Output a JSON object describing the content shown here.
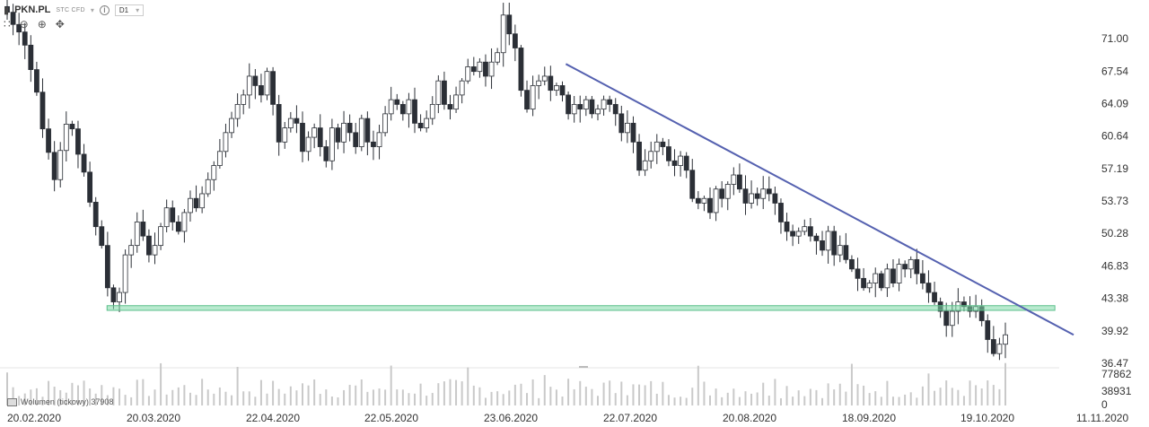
{
  "toolbar": {
    "symbol": "PKN.PL",
    "instrument_type": "STC CFD",
    "timeframe": "D1",
    "icons": [
      "chevron-down-icon",
      "info-icon",
      "candles-icon",
      "zoom-out-icon",
      "zoom-in-icon",
      "move-icon"
    ]
  },
  "volume_label": "Wolumen (tickowy) 37908",
  "colors": {
    "bull": "#ffffff",
    "bear": "#2b2f36",
    "trendline": "#5561b0",
    "support": "#7fd9a8",
    "volume": "#c9c9c9"
  },
  "chart_data": {
    "type": "candlestick",
    "y_ticks": [
      "71.00",
      "67.54",
      "64.09",
      "60.64",
      "57.19",
      "53.73",
      "50.28",
      "46.83",
      "43.38",
      "39.92",
      "36.47"
    ],
    "x_ticks": [
      "20.02.2020",
      "20.03.2020",
      "22.04.2020",
      "22.05.2020",
      "23.06.2020",
      "22.07.2020",
      "20.08.2020",
      "18.09.2020",
      "19.10.2020",
      "11.11.2020"
    ],
    "volume_ticks": [
      "77862",
      "38931",
      "0"
    ],
    "ylim": [
      36.47,
      71.0
    ],
    "trendline": {
      "start": [
        "2020-06-18",
        68.3
      ],
      "end": [
        "2020-11-11",
        39.5
      ]
    },
    "support_zone": {
      "from": 42.1,
      "to": 42.6,
      "start": "2020-03-18",
      "end": "2020-10-28"
    },
    "closes": [
      73.8,
      72.5,
      71.7,
      70.3,
      67.7,
      65.3,
      61.4,
      58.9,
      56.0,
      59.1,
      61.9,
      61.4,
      58.7,
      56.8,
      53.6,
      51.0,
      49.0,
      44.5,
      43.0,
      44.0,
      48.0,
      49.0,
      51.5,
      50.0,
      48.0,
      49.0,
      51.0,
      53.0,
      51.5,
      50.5,
      52.5,
      54.0,
      53.0,
      54.5,
      56.0,
      57.5,
      59.0,
      61.0,
      62.5,
      64.0,
      65.0,
      67.0,
      66.0,
      65.0,
      67.5,
      64.0,
      60.0,
      61.5,
      62.5,
      62.0,
      59.0,
      60.5,
      61.5,
      59.5,
      58.0,
      61.5,
      60.0,
      62.0,
      61.0,
      59.5,
      62.5,
      60.0,
      59.5,
      61.0,
      63.0,
      64.5,
      64.0,
      63.0,
      64.5,
      62.0,
      61.5,
      62.5,
      64.0,
      66.5,
      64.0,
      63.5,
      65.0,
      66.5,
      68.0,
      67.5,
      68.5,
      67.0,
      68.5,
      69.5,
      73.5,
      71.5,
      70.0,
      65.5,
      63.5,
      66.0,
      66.5,
      67.0,
      65.5,
      66.0,
      65.0,
      63.0,
      64.0,
      63.5,
      64.5,
      63.0,
      63.5,
      64.5,
      64.0,
      63.0,
      61.0,
      62.0,
      60.0,
      57.0,
      58.0,
      59.0,
      60.0,
      59.5,
      58.0,
      57.5,
      58.5,
      57.0,
      54.0,
      53.5,
      54.0,
      52.5,
      55.0,
      54.0,
      55.5,
      56.5,
      55.0,
      53.5,
      54.5,
      54.0,
      55.0,
      54.5,
      53.5,
      51.5,
      50.5,
      50.0,
      50.5,
      51.0,
      50.0,
      49.5,
      48.5,
      50.5,
      48.0,
      49.0,
      47.5,
      46.5,
      45.5,
      44.5,
      45.0,
      46.0,
      44.5,
      46.5,
      45.0,
      47.0,
      46.5,
      47.5,
      46.0,
      45.0,
      44.0,
      43.0,
      42.0,
      40.5,
      42.0,
      43.0,
      42.5,
      42.0,
      42.5,
      41.0,
      39.0,
      37.5,
      38.5,
      39.5
    ]
  }
}
